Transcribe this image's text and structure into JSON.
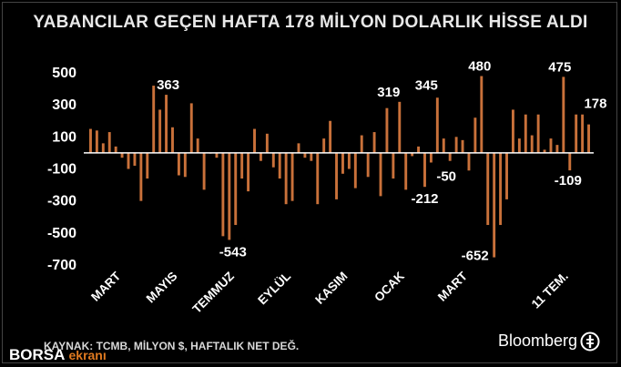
{
  "title": "YABANCILAR GEÇEN HAFTA 178 MİLYON DOLARLIK HİSSE ALDI",
  "source": "KAYNAK: TCMB, MİLYON $, HAFTALIK NET DEĞ.",
  "bloomberg_label": "Bloomberg",
  "logo": {
    "brand": "BORSA",
    "sub": "ekranı"
  },
  "colors": {
    "bar": "#c9713a",
    "background": "#000000",
    "text": "#ffffff",
    "baseline": "#ffffff"
  },
  "chart_data": {
    "type": "bar",
    "title": "YABANCILAR GEÇEN HAFTA 178 MİLYON DOLARLIK HİSSE ALDI",
    "ylabel": "",
    "xlabel": "",
    "yticks": [
      500,
      300,
      100,
      -100,
      -300,
      -500,
      -700
    ],
    "ytick_labels": [
      "500",
      "300",
      "100",
      "-100",
      "-300",
      "-500",
      "-700"
    ],
    "ylim": [
      -700,
      500
    ],
    "grid": false,
    "xtick_labels": [
      {
        "label": "MART",
        "bar": 4
      },
      {
        "label": "MAYIS",
        "bar": 13
      },
      {
        "label": "TEMMUZ",
        "bar": 22
      },
      {
        "label": "EYLÜL",
        "bar": 31
      },
      {
        "label": "KASIM",
        "bar": 40
      },
      {
        "label": "OCAK",
        "bar": 49
      },
      {
        "label": "MART",
        "bar": 59
      },
      {
        "label": "11 TEM.",
        "bar": 75
      }
    ],
    "values": [
      150,
      140,
      60,
      130,
      40,
      -30,
      -100,
      -80,
      -300,
      -160,
      420,
      270,
      363,
      160,
      -140,
      -150,
      310,
      90,
      -230,
      0,
      -30,
      -520,
      -543,
      -450,
      -160,
      -240,
      150,
      -50,
      120,
      -90,
      -160,
      -320,
      -300,
      60,
      -30,
      -50,
      -320,
      90,
      200,
      -290,
      -130,
      -100,
      -220,
      110,
      -150,
      130,
      -270,
      280,
      -160,
      319,
      -230,
      -20,
      40,
      -212,
      -60,
      345,
      90,
      -50,
      100,
      80,
      -110,
      220,
      480,
      -450,
      -652,
      -450,
      -290,
      270,
      90,
      240,
      110,
      240,
      20,
      90,
      50,
      475,
      -109,
      240,
      240,
      178
    ],
    "annotations": [
      {
        "text": "363",
        "bar": 12
      },
      {
        "text": "-543",
        "bar": 22
      },
      {
        "text": "319",
        "bar": 49
      },
      {
        "text": "-212",
        "bar": 53
      },
      {
        "text": "345",
        "bar": 55
      },
      {
        "text": "-50",
        "bar": 57
      },
      {
        "text": "480",
        "bar": 62
      },
      {
        "text": "-652",
        "bar": 64
      },
      {
        "text": "475",
        "bar": 75
      },
      {
        "text": "-109",
        "bar": 76
      },
      {
        "text": "178",
        "bar": 79
      }
    ]
  }
}
